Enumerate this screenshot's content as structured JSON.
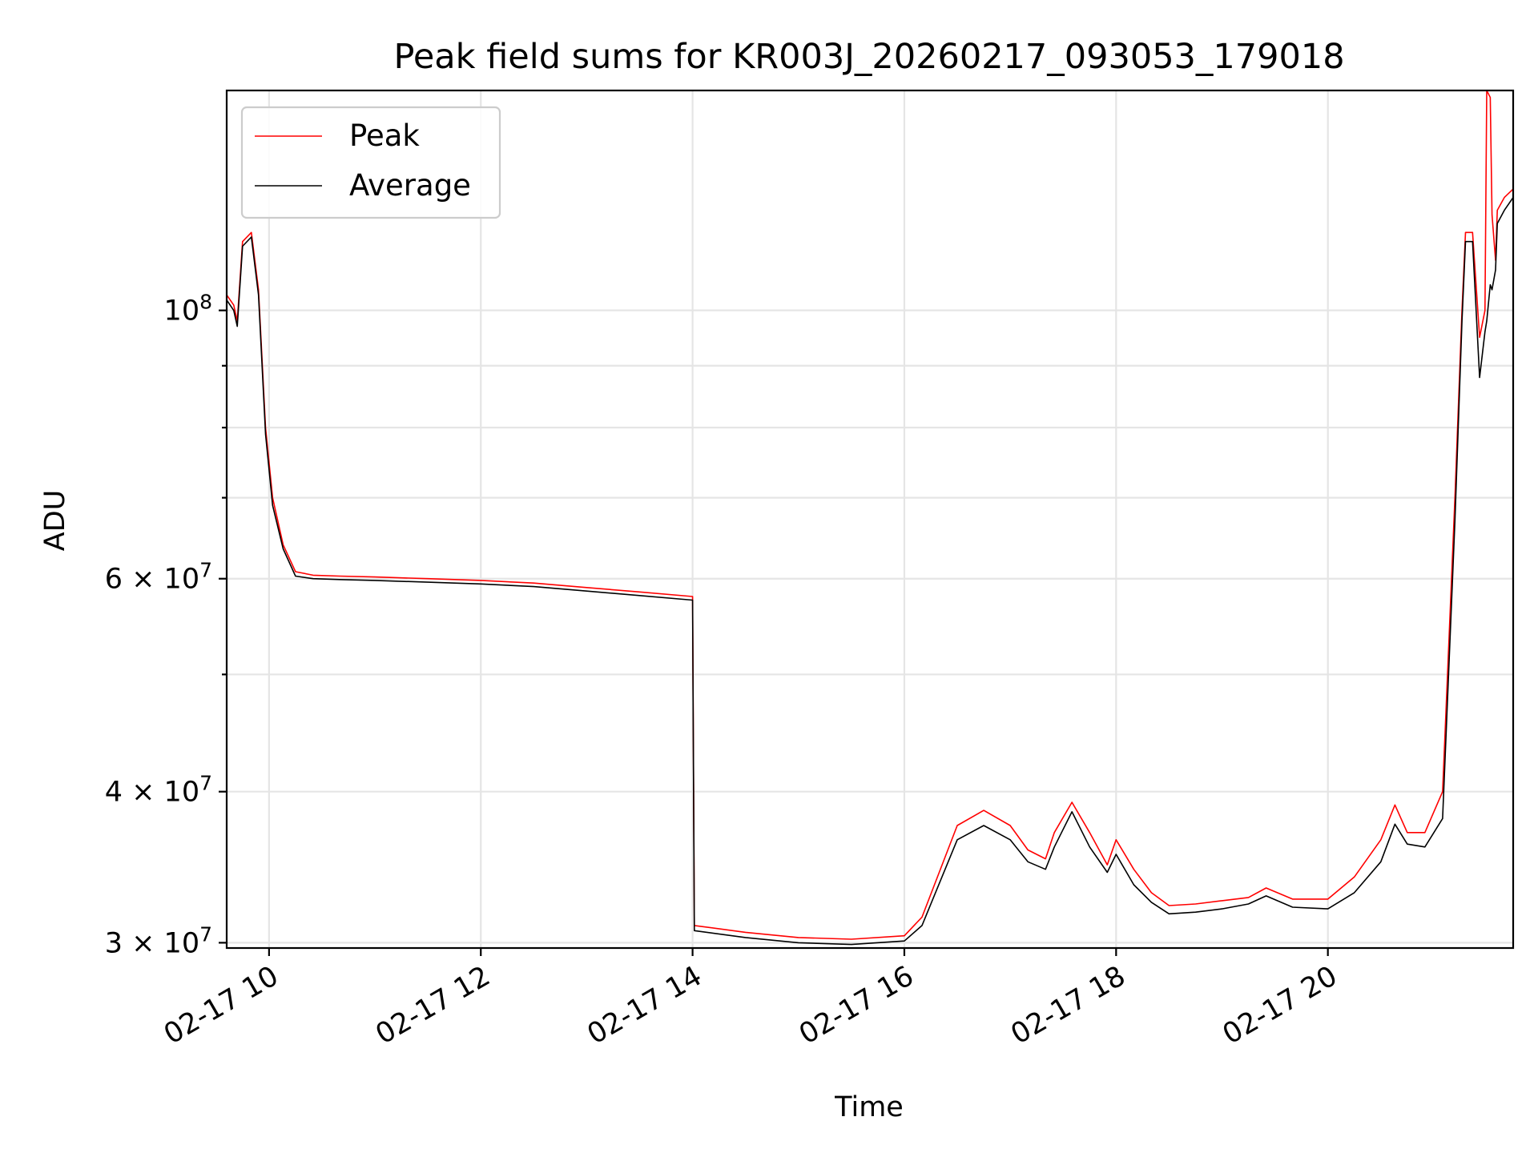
{
  "chart_data": {
    "type": "line",
    "title": "Peak field sums for KR003J_20260217_093053_179018",
    "xlabel": "Time",
    "ylabel": "ADU",
    "yscale": "log",
    "xlim": [
      "2026-02-17 09:36",
      "2026-02-17 21:45"
    ],
    "ylim": [
      29700000,
      152000000
    ],
    "x_ticks": [
      "02-17 10",
      "02-17 12",
      "02-17 14",
      "02-17 16",
      "02-17 18",
      "02-17 20"
    ],
    "y_major_ticks": [
      {
        "value": 30000000,
        "label": "3 × 10^7"
      },
      {
        "value": 40000000,
        "label": "4 × 10^7"
      },
      {
        "value": 60000000,
        "label": "6 × 10^7"
      },
      {
        "value": 100000000,
        "label": "10^8"
      }
    ],
    "grid": true,
    "legend_position": "upper left",
    "series": [
      {
        "name": "Peak",
        "color": "#ff0000",
        "x": [
          "02-17 09:36",
          "02-17 09:40",
          "02-17 09:42",
          "02-17 09:45",
          "02-17 09:50",
          "02-17 09:54",
          "02-17 09:58",
          "02-17 10:02",
          "02-17 10:08",
          "02-17 10:15",
          "02-17 10:25",
          "02-17 10:40",
          "02-17 11:00",
          "02-17 11:30",
          "02-17 12:00",
          "02-17 12:30",
          "02-17 13:00",
          "02-17 13:30",
          "02-17 14:00",
          "02-17 14:01",
          "02-17 14:30",
          "02-17 15:00",
          "02-17 15:30",
          "02-17 16:00",
          "02-17 16:10",
          "02-17 16:30",
          "02-17 16:45",
          "02-17 17:00",
          "02-17 17:10",
          "02-17 17:20",
          "02-17 17:25",
          "02-17 17:35",
          "02-17 17:45",
          "02-17 17:55",
          "02-17 18:00",
          "02-17 18:10",
          "02-17 18:20",
          "02-17 18:30",
          "02-17 18:45",
          "02-17 19:00",
          "02-17 19:15",
          "02-17 19:25",
          "02-17 19:40",
          "02-17 20:00",
          "02-17 20:15",
          "02-17 20:30",
          "02-17 20:38",
          "02-17 20:45",
          "02-17 20:55",
          "02-17 21:05",
          "02-17 21:12",
          "02-17 21:16",
          "02-17 21:18",
          "02-17 21:22",
          "02-17 21:26",
          "02-17 21:29",
          "02-17 21:30",
          "02-17 21:32",
          "02-17 21:33",
          "02-17 21:35",
          "02-17 21:36",
          "02-17 21:40",
          "02-17 21:45"
        ],
        "y": [
          103000000,
          101000000,
          98000000,
          114000000,
          116000000,
          104000000,
          80000000,
          70000000,
          64000000,
          60800000,
          60400000,
          60300000,
          60200000,
          60000000,
          59800000,
          59500000,
          59000000,
          58500000,
          58000000,
          31000000,
          30600000,
          30300000,
          30200000,
          30400000,
          31500000,
          37500000,
          38600000,
          37500000,
          35800000,
          35200000,
          37000000,
          39200000,
          37000000,
          34800000,
          36500000,
          34500000,
          33000000,
          32200000,
          32300000,
          32500000,
          32700000,
          33300000,
          32600000,
          32600000,
          34000000,
          36500000,
          39000000,
          37000000,
          37000000,
          40000000,
          70000000,
          100000000,
          116000000,
          116000000,
          95000000,
          100000000,
          152000000,
          150000000,
          120000000,
          110000000,
          121000000,
          124000000,
          126000000
        ]
      },
      {
        "name": "Average",
        "color": "#000000",
        "x": [
          "02-17 09:36",
          "02-17 09:40",
          "02-17 09:42",
          "02-17 09:45",
          "02-17 09:50",
          "02-17 09:54",
          "02-17 09:58",
          "02-17 10:02",
          "02-17 10:08",
          "02-17 10:15",
          "02-17 10:25",
          "02-17 10:40",
          "02-17 11:00",
          "02-17 11:30",
          "02-17 12:00",
          "02-17 12:30",
          "02-17 13:00",
          "02-17 13:30",
          "02-17 14:00",
          "02-17 14:01",
          "02-17 14:30",
          "02-17 15:00",
          "02-17 15:30",
          "02-17 16:00",
          "02-17 16:10",
          "02-17 16:30",
          "02-17 16:45",
          "02-17 17:00",
          "02-17 17:10",
          "02-17 17:20",
          "02-17 17:25",
          "02-17 17:35",
          "02-17 17:45",
          "02-17 17:55",
          "02-17 18:00",
          "02-17 18:10",
          "02-17 18:20",
          "02-17 18:30",
          "02-17 18:45",
          "02-17 19:00",
          "02-17 19:15",
          "02-17 19:25",
          "02-17 19:40",
          "02-17 20:00",
          "02-17 20:15",
          "02-17 20:30",
          "02-17 20:38",
          "02-17 20:45",
          "02-17 20:55",
          "02-17 21:05",
          "02-17 21:12",
          "02-17 21:16",
          "02-17 21:18",
          "02-17 21:22",
          "02-17 21:26",
          "02-17 21:29",
          "02-17 21:30",
          "02-17 21:32",
          "02-17 21:33",
          "02-17 21:35",
          "02-17 21:36",
          "02-17 21:40",
          "02-17 21:45"
        ],
        "y": [
          102000000,
          100000000,
          97000000,
          113000000,
          115000000,
          103000000,
          79000000,
          69000000,
          63500000,
          60300000,
          60000000,
          59900000,
          59800000,
          59600000,
          59400000,
          59100000,
          58600000,
          58100000,
          57600000,
          30700000,
          30300000,
          30000000,
          29900000,
          30100000,
          31000000,
          36500000,
          37500000,
          36500000,
          35000000,
          34500000,
          36000000,
          38500000,
          36000000,
          34300000,
          35500000,
          33500000,
          32400000,
          31700000,
          31800000,
          32000000,
          32300000,
          32800000,
          32100000,
          32000000,
          33000000,
          35000000,
          37600000,
          36200000,
          36000000,
          38000000,
          67000000,
          98000000,
          114000000,
          114000000,
          88000000,
          96000000,
          98000000,
          105000000,
          104000000,
          108000000,
          118000000,
          121000000,
          124000000
        ]
      }
    ]
  }
}
